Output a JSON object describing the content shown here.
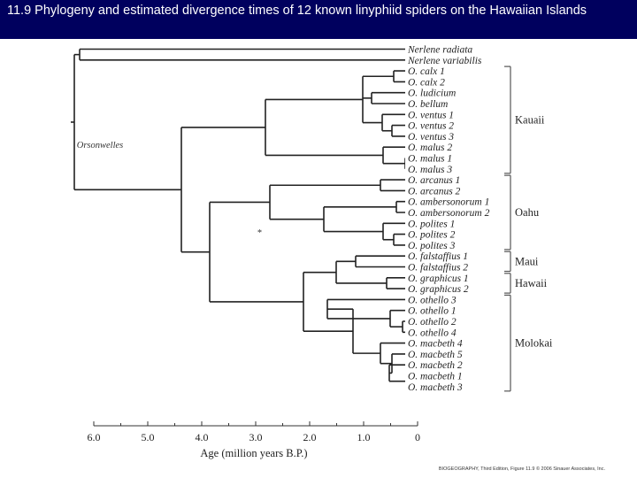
{
  "slide_title": "11.9 Phylogeny and estimated divergence times of 12 known linyphiid spiders on the Hawaiian Islands",
  "colors": {
    "title_bar": "#00005e",
    "title_text": "#ffffff",
    "branches": "#222222",
    "brackets": "#555555"
  },
  "tree": {
    "outgroup_label": "Orsonwelles",
    "node_marker": "*",
    "tips": [
      "Nerlene radiata",
      "Nerlene variabilis",
      "O. calx 1",
      "O. calx 2",
      "O. ludicium",
      "O. bellum",
      "O. ventus 1",
      "O. ventus 2",
      "O. ventus 3",
      "O. malus 2",
      "O. malus 1",
      "O. malus 3",
      "O. arcanus 1",
      "O. arcanus 2",
      "O. ambersonorum 1",
      "O. ambersonorum 2",
      "O. polites 1",
      "O. polites 2",
      "O. polites 3",
      "O. falstaffius 1",
      "O. falstaffius 2",
      "O. graphicus 1",
      "O. graphicus 2",
      "O. othello 3",
      "O. othello 1",
      "O. othello 2",
      "O. othello 4",
      "O. macbeth 4",
      "O. macbeth 5",
      "O. macbeth 2",
      "O. macbeth 1",
      "O. macbeth 3"
    ],
    "regions": [
      {
        "name": "Kauaii",
        "first_tip": 2,
        "last_tip": 11
      },
      {
        "name": "Oahu",
        "first_tip": 12,
        "last_tip": 18
      },
      {
        "name": "Maui",
        "first_tip": 19,
        "last_tip": 20
      },
      {
        "name": "Hawaii",
        "first_tip": 21,
        "last_tip": 22
      },
      {
        "name": "Molokai",
        "first_tip": 23,
        "last_tip": 31
      }
    ]
  },
  "axis": {
    "label": "Age (million years B.P.)",
    "ticks": [
      "6.0",
      "5.0",
      "4.0",
      "3.0",
      "2.0",
      "1.0",
      "0"
    ],
    "tick_values": [
      6,
      5,
      4,
      3,
      2,
      1,
      0
    ]
  },
  "credit": "BIOGEOGRAPHY, Third Edition, Figure 11.9 © 2006 Sinauer Associates, Inc."
}
